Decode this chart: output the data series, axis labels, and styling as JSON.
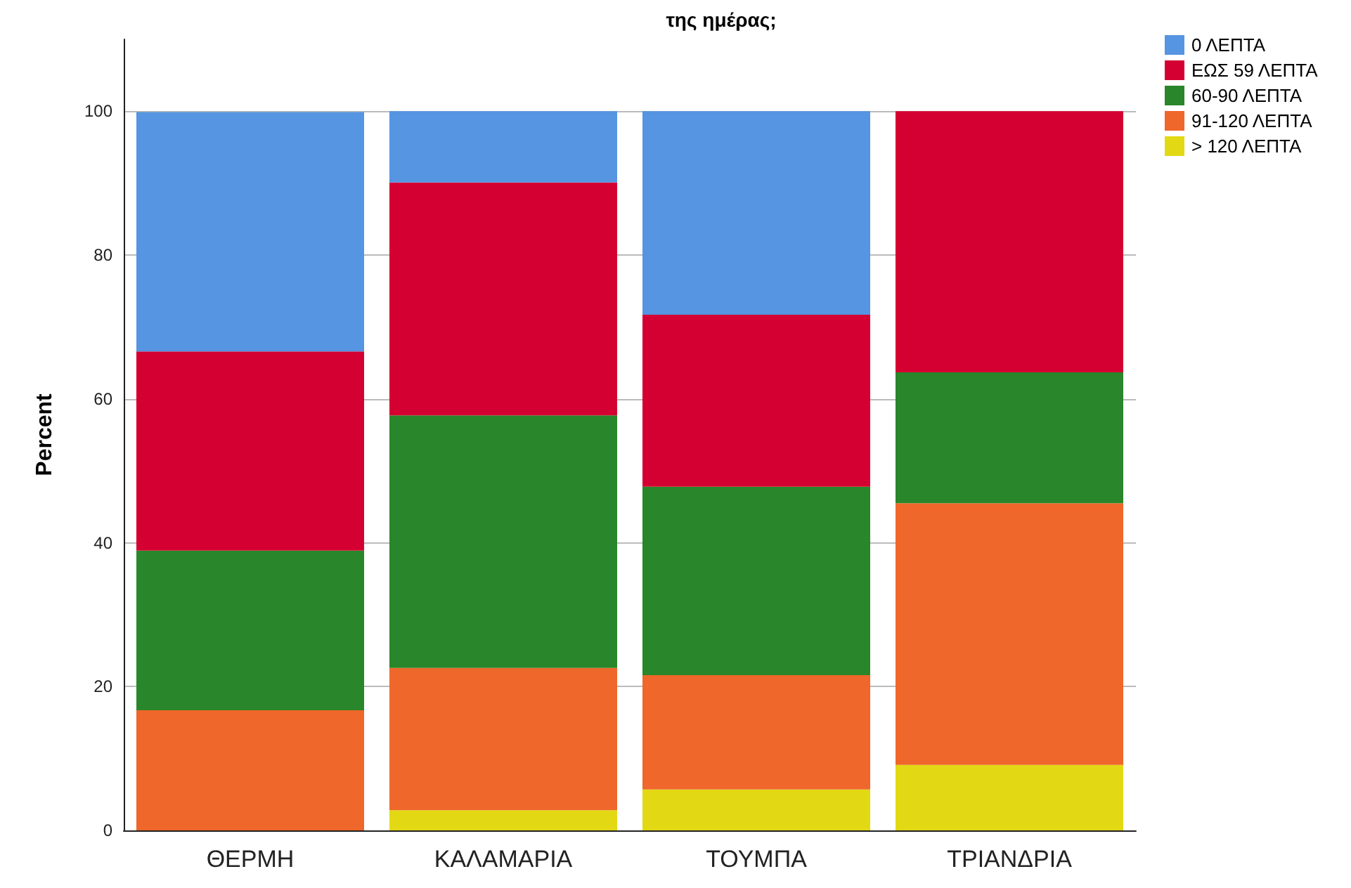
{
  "chart_data": {
    "type": "bar",
    "title": "της ημέρας;",
    "ylabel": "Percent",
    "stacked": true,
    "categories": [
      "ΘΕΡΜΗ",
      "ΚΑΛΑΜΑΡΙΑ",
      "ΤΟΥΜΠΑ",
      "ΤΡΙΑΝΔΡΙΑ"
    ],
    "series": [
      {
        "name": "> 120 ΛΕΠΤΑ",
        "color": "#e2d914",
        "values": [
          0,
          2.8,
          5.7,
          9.1
        ]
      },
      {
        "name": "91-120 ΛΕΠΤΑ",
        "color": "#ef672a",
        "values": [
          16.7,
          19.8,
          15.9,
          36.4
        ]
      },
      {
        "name": "60-90 ΛΕΠΤΑ",
        "color": "#2a862a",
        "values": [
          22.2,
          35.1,
          26.2,
          18.2
        ]
      },
      {
        "name": "ΕΩΣ 59 ΛΕΠΤΑ",
        "color": "#d50032",
        "values": [
          27.7,
          32.4,
          23.9,
          36.3
        ]
      },
      {
        "name": "0 ΛΕΠΤΑ",
        "color": "#5595e2",
        "values": [
          33.3,
          9.9,
          28.3,
          0
        ]
      }
    ],
    "ylim": [
      0,
      110
    ],
    "yticks": [
      0,
      20,
      40,
      60,
      80,
      100
    ],
    "grid": "y",
    "legend": "top right"
  }
}
